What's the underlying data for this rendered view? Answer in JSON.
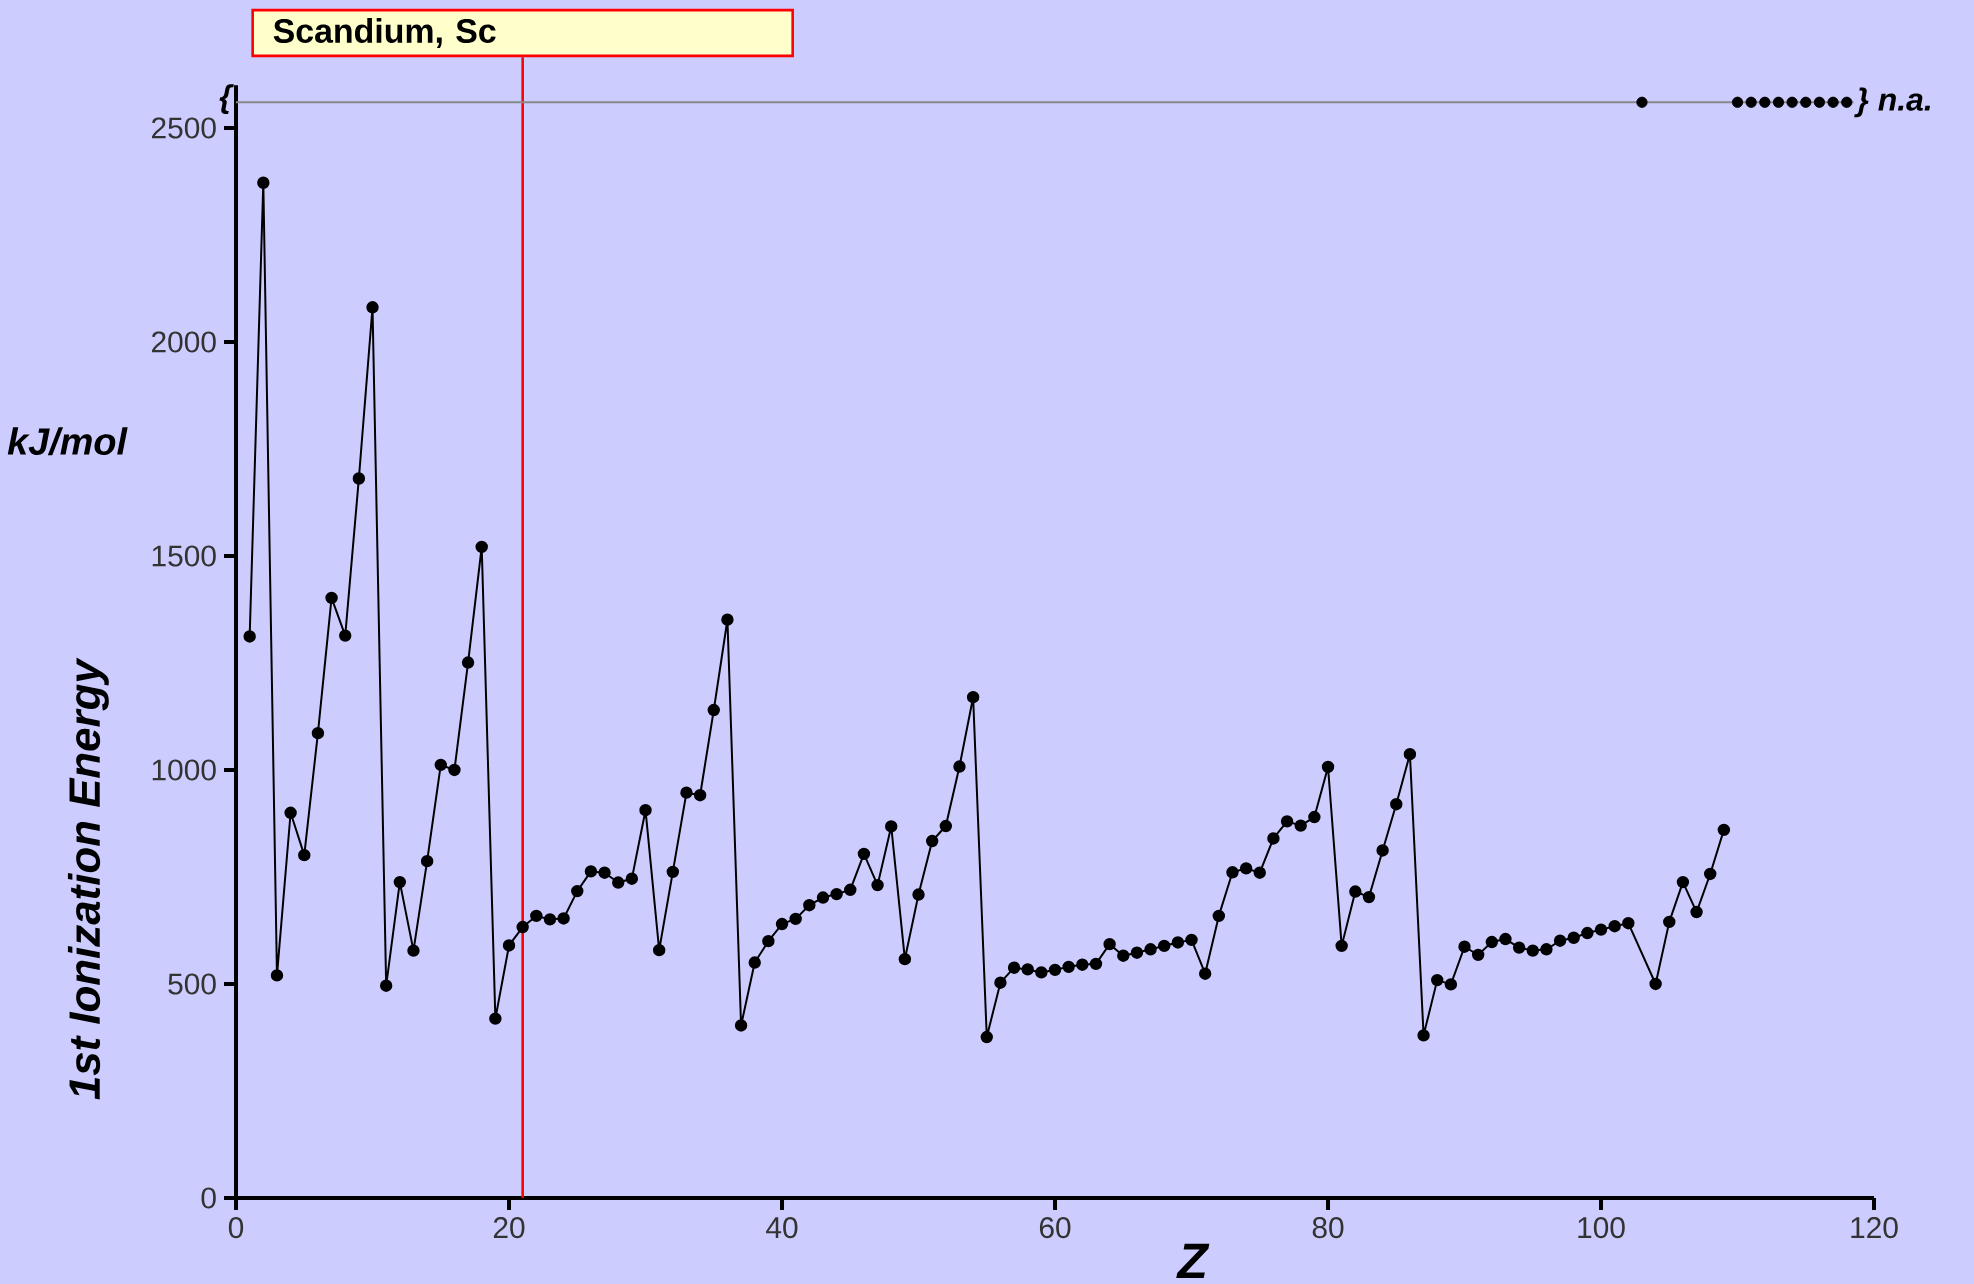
{
  "chart_data": {
    "type": "line",
    "xlabel": "Z",
    "ylabel": "1st Ionization Energy",
    "annotations": [
      "kJ/mol",
      {
        "text": "{",
        "x": 0,
        "y": 2560
      }
    ],
    "xlim": [
      0,
      120
    ],
    "xticks": [
      0,
      20,
      40,
      60,
      80,
      100,
      120
    ],
    "ylim": [
      0,
      2600
    ],
    "yticks": [
      0,
      500,
      1000,
      1500,
      2000,
      2500
    ],
    "marker": "circle",
    "ref_lines": [
      {
        "axis": "x",
        "value": 21,
        "label": "Scandium, Sc",
        "color": "#ff0000"
      },
      {
        "axis": "y",
        "value": 2560,
        "label": "} n.a.",
        "color": "#888888"
      }
    ],
    "series": [
      {
        "color": "#000000",
        "x": [
          1,
          2,
          3,
          4,
          5,
          6,
          7,
          8,
          9,
          10,
          11,
          12,
          13,
          14,
          15,
          16,
          17,
          18,
          19,
          20,
          21,
          22,
          23,
          24,
          25,
          26,
          27,
          28,
          29,
          30,
          31,
          32,
          33,
          34,
          35,
          36,
          37,
          38,
          39,
          40,
          41,
          42,
          43,
          44,
          45,
          46,
          47,
          48,
          49,
          50,
          51,
          52,
          53,
          54,
          55,
          56,
          57,
          58,
          59,
          60,
          61,
          62,
          63,
          64,
          65,
          66,
          67,
          68,
          69,
          70,
          71,
          72,
          73,
          74,
          75,
          76,
          77,
          78,
          79,
          80,
          81,
          82,
          83,
          84,
          85,
          86,
          87,
          88,
          89,
          90,
          91,
          92,
          93,
          94,
          95,
          96,
          97,
          98,
          99,
          100,
          101,
          102,
          104,
          105,
          106,
          107,
          108,
          109
        ],
        "values": [
          1312,
          2372,
          520,
          900,
          801,
          1086,
          1402,
          1314,
          1681,
          2081,
          496,
          738,
          578,
          787,
          1012,
          1000,
          1251,
          1521,
          419,
          590,
          633,
          659,
          651,
          653,
          717,
          763,
          760,
          737,
          746,
          906,
          579,
          762,
          947,
          941,
          1140,
          1351,
          403,
          550,
          600,
          640,
          652,
          684,
          702,
          710,
          720,
          804,
          731,
          868,
          558,
          709,
          834,
          869,
          1008,
          1170,
          376,
          503,
          538,
          534,
          527,
          533,
          540,
          545,
          547,
          593,
          566,
          573,
          581,
          589,
          597,
          603,
          524,
          659,
          761,
          770,
          760,
          840,
          880,
          870,
          890,
          1007,
          589,
          716,
          703,
          812,
          920,
          1037,
          380,
          509,
          499,
          587,
          568,
          598,
          605,
          585,
          578,
          581,
          601,
          608,
          619,
          627,
          635,
          642,
          500,
          645,
          738,
          668,
          757,
          860
        ]
      },
      {
        "type": "scatter",
        "color": "#000000",
        "x": [
          103,
          110,
          111,
          112,
          113,
          114,
          115,
          116,
          117,
          118
        ],
        "values": [
          2560,
          2560,
          2560,
          2560,
          2560,
          2560,
          2560,
          2560,
          2560,
          2560
        ]
      }
    ]
  }
}
